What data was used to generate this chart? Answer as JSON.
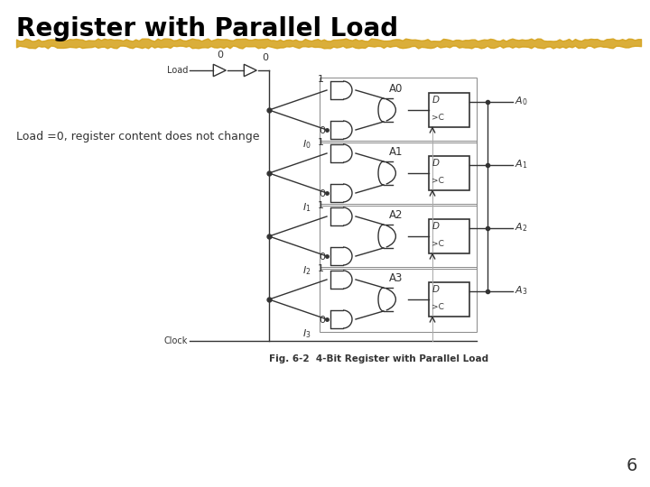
{
  "title": "Register with Parallel Load",
  "subtitle": "Load =0, register content does not change",
  "fig_caption": "Fig. 6-2  4-Bit Register with Parallel Load",
  "page_number": "6",
  "bg_color": "#ffffff",
  "title_color": "#000000",
  "highlight_color": "#D4A017",
  "diagram_color": "#333333",
  "load_label": "Load",
  "clock_label": "Clock",
  "bit_labels": [
    "A0",
    "A1",
    "A2",
    "A3"
  ],
  "input_labels": [
    "I0",
    "I1",
    "I2",
    "I3"
  ],
  "output_labels": [
    "A0",
    "A1",
    "A2",
    "A3"
  ],
  "row_values_top": [
    "1",
    "1",
    "1",
    "1"
  ],
  "row_values_bot": [
    "0",
    "0",
    "0",
    "0"
  ],
  "load_top_val": "0",
  "load_mid_val": "0"
}
